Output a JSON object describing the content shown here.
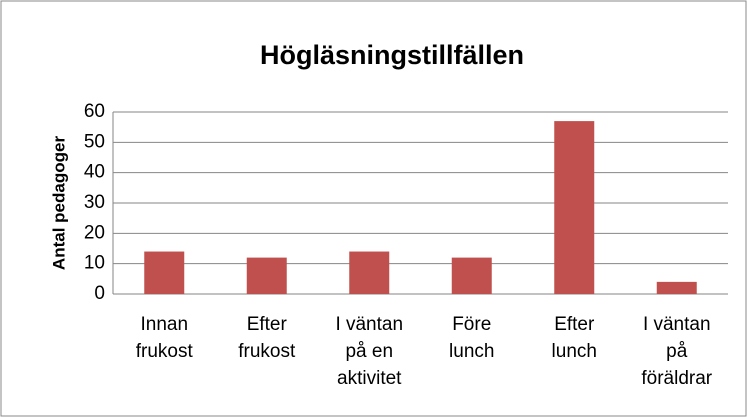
{
  "chart_data": {
    "type": "bar",
    "title": "Högläsningstillfällen",
    "ylabel": "Antal pedagoger",
    "categories": [
      "Innan frukost",
      "Efter frukost",
      "I väntan på en aktivitet",
      "Före lunch",
      "Efter lunch",
      "I väntan på föräldrar"
    ],
    "values": [
      14,
      12,
      14,
      12,
      57,
      4
    ],
    "color": "#c0504d",
    "ylim": [
      0,
      60
    ],
    "yticks": [
      0,
      10,
      20,
      30,
      40,
      50,
      60
    ],
    "grid": true
  }
}
